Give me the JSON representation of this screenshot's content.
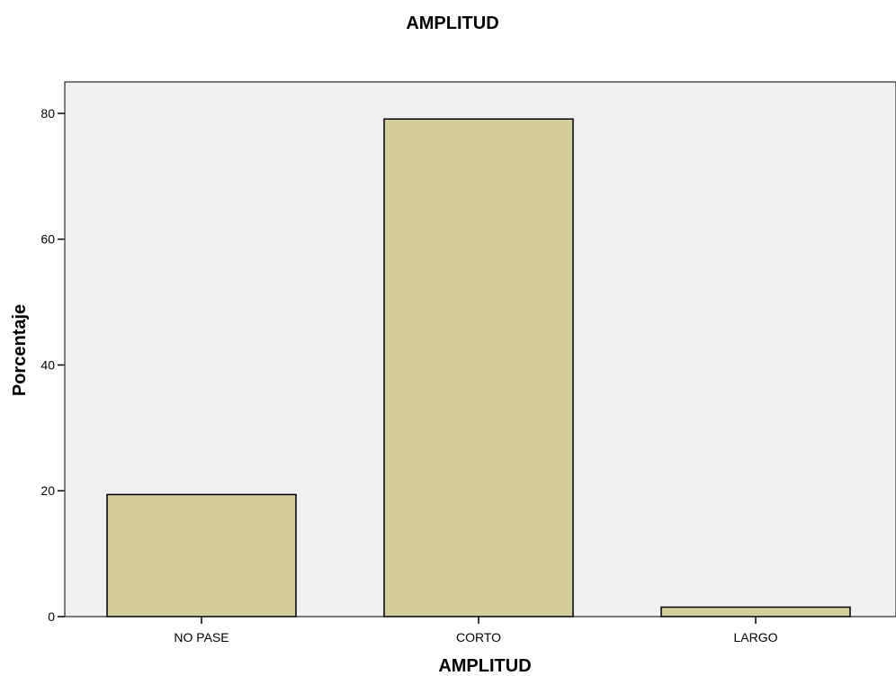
{
  "chart_data": {
    "type": "bar",
    "title": "AMPLITUD",
    "xlabel": "AMPLITUD",
    "ylabel": "Porcentaje",
    "categories": [
      "NO PASE",
      "CORTO",
      "LARGO"
    ],
    "values": [
      19.4,
      79.1,
      1.5
    ],
    "ylim": [
      0,
      85
    ],
    "yticks": [
      0,
      20,
      40,
      60,
      80
    ],
    "grid": false,
    "colors": {
      "bar_fill": "#d3ce99",
      "bar_stroke": "#000000",
      "plot_bg": "#f0f0f0"
    }
  }
}
